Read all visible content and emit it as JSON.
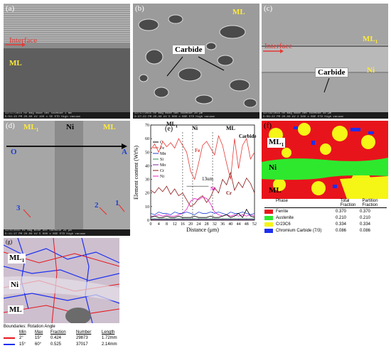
{
  "panels": {
    "a": {
      "label": "(a)",
      "interface": "Interface",
      "ml": "ML",
      "infobar": "12/17/2015  HV  mag  mode det  vacMode  1 mm",
      "infobar2": "5:54:13 PM 20.00 kV 100 x SE ETD High vacuum"
    },
    "b": {
      "label": "(b)",
      "ml": "ML",
      "carbide": "Carbide",
      "infobar": "12/17/2015  HV  mag  mode det  vacMode  20 µm",
      "infobar2": "3:37:22 PM 20.00 kV 5 000 x BSE ETD High vacuum"
    },
    "c": {
      "label": "(c)",
      "interface": "Interface",
      "ml": "ML",
      "ml_sub": "1",
      "ni": "Ni",
      "carbide": "Carbide",
      "infobar": "12/18/2015  HV  mag  mode det  vacMode  40 µm",
      "infobar2": "5:09:22 PM 20.00 kV 2 500 x BSE ETD High vacuum"
    },
    "d": {
      "label": "(d)",
      "ml1": "ML",
      "ml1_sub": "1",
      "ni": "Ni",
      "ml": "ML",
      "o": "O",
      "a": "A",
      "p1": "1",
      "p2": "2",
      "p3": "3",
      "infobar": "12/8/2015  HV  mag  mode det  vacMode  20 µm",
      "infobar2": "5:11:17 PM 20.00 kV 5 000 x BSE ETD High vacuum"
    },
    "e": {
      "label": "(e)",
      "ml1": "ML",
      "ml1_sub": "1",
      "ni": "Ni",
      "ml": "ML",
      "carbide": "Carbide",
      "fe": "Fe",
      "ni_curve": "Ni",
      "cr": "Cr",
      "span": "13um"
    },
    "f": {
      "label": "(f)",
      "ml1": "ML",
      "ml1_sub": "1",
      "ni": "Ni",
      "ml": "ML",
      "table": {
        "headers": [
          "Phase",
          "Total Fraction",
          "Partition Fraction"
        ],
        "rows": [
          {
            "color": "#e8141b",
            "phase": "Ferrite",
            "total": "0.370",
            "partition": "0.370"
          },
          {
            "color": "#2ee82e",
            "phase": "Austenite",
            "total": "0.210",
            "partition": "0.210"
          },
          {
            "color": "#f5f516",
            "phase": "Cr23C6",
            "total": "0.334",
            "partition": "0.334"
          },
          {
            "color": "#1d2ff0",
            "phase": "Chromium Carbide (7/3)",
            "total": "0.086",
            "partition": "0.086"
          }
        ]
      }
    },
    "g": {
      "label": "(g)",
      "ml1": "ML",
      "ml1_sub": "1",
      "ni": "Ni",
      "ml": "ML",
      "boundaries_title": "Boundaries: Rotation Angle",
      "headers": [
        "Min",
        "Max",
        "Fraction",
        "Number",
        "Length"
      ],
      "rows": [
        {
          "color": "#e8141b",
          "min": "2°",
          "max": "15°",
          "fraction": "0.424",
          "number": "29873",
          "length": "1.72mm"
        },
        {
          "color": "#1d2ff0",
          "min": "15°",
          "max": "60°",
          "fraction": "0.525",
          "number": "37017",
          "length": "2.14mm"
        }
      ]
    }
  },
  "chart_data": {
    "type": "line",
    "xlabel": "Distance (μm)",
    "ylabel": "Element content (Wt%)",
    "xlim": [
      0,
      52
    ],
    "ylim": [
      0,
      70
    ],
    "xticks": [
      "0",
      "4",
      "8",
      "12",
      "16",
      "20",
      "24",
      "28",
      "32",
      "36",
      "40",
      "44",
      "48",
      "52"
    ],
    "yticks": [
      "0",
      "10",
      "20",
      "30",
      "40",
      "50",
      "60",
      "70"
    ],
    "legend_position": "left",
    "legend": [
      "C",
      "Fe",
      "Mn",
      "Si",
      "Mo",
      "Cr",
      "Ni"
    ],
    "colors": {
      "C": "#000000",
      "Fe": "#e53935",
      "Mn": "#1e3fd6",
      "Si": "#2e8b57",
      "Mo": "#7b1fa2",
      "Cr": "#8b1a1a",
      "Ni": "#e91ec8"
    },
    "x": [
      0,
      2,
      4,
      6,
      8,
      10,
      12,
      14,
      16,
      18,
      20,
      22,
      24,
      26,
      28,
      30,
      32,
      34,
      36,
      38,
      40,
      42,
      44,
      46,
      48,
      50,
      52
    ],
    "series": [
      {
        "name": "Fe",
        "values": [
          52,
          56,
          50,
          58,
          54,
          57,
          53,
          60,
          55,
          50,
          36,
          30,
          42,
          55,
          58,
          53,
          48,
          62,
          55,
          42,
          30,
          60,
          38,
          55,
          60,
          45,
          50
        ]
      },
      {
        "name": "Cr",
        "values": [
          22,
          20,
          24,
          21,
          25,
          19,
          23,
          18,
          20,
          15,
          10,
          12,
          16,
          18,
          13,
          17,
          24,
          20,
          30,
          26,
          35,
          22,
          28,
          24,
          31,
          27,
          20
        ]
      },
      {
        "name": "Ni",
        "values": [
          3,
          3,
          4,
          3,
          4,
          3,
          3,
          4,
          5,
          8,
          14,
          16,
          15,
          17,
          16,
          12,
          6,
          4,
          3,
          4,
          3,
          4,
          3,
          4,
          3,
          4,
          3
        ]
      },
      {
        "name": "Mn",
        "values": [
          5,
          4,
          6,
          5,
          5,
          4,
          6,
          5,
          5,
          6,
          5,
          4,
          6,
          5,
          5,
          6,
          5,
          6,
          5,
          4,
          6,
          5,
          5,
          6,
          5,
          4,
          5
        ]
      },
      {
        "name": "C",
        "values": [
          2,
          3,
          2,
          2,
          3,
          2,
          2,
          3,
          2,
          2,
          2,
          3,
          2,
          2,
          2,
          3,
          2,
          2,
          3,
          4,
          2,
          3,
          5,
          2,
          8,
          3,
          2
        ]
      },
      {
        "name": "Si",
        "values": [
          1,
          1,
          1,
          1,
          1,
          1,
          1,
          1,
          1,
          1,
          1,
          1,
          1,
          1,
          1,
          1,
          1,
          1,
          1,
          1,
          1,
          1,
          1,
          1,
          1,
          1,
          1
        ]
      },
      {
        "name": "Mo",
        "values": [
          0.5,
          0.5,
          0.5,
          0.5,
          0.5,
          0.5,
          0.5,
          0.5,
          0.5,
          0.5,
          0.5,
          0.5,
          0.5,
          0.5,
          0.5,
          0.5,
          0.5,
          0.5,
          0.5,
          0.5,
          0.5,
          0.5,
          0.5,
          0.5,
          0.5,
          0.5,
          0.5
        ]
      }
    ]
  }
}
